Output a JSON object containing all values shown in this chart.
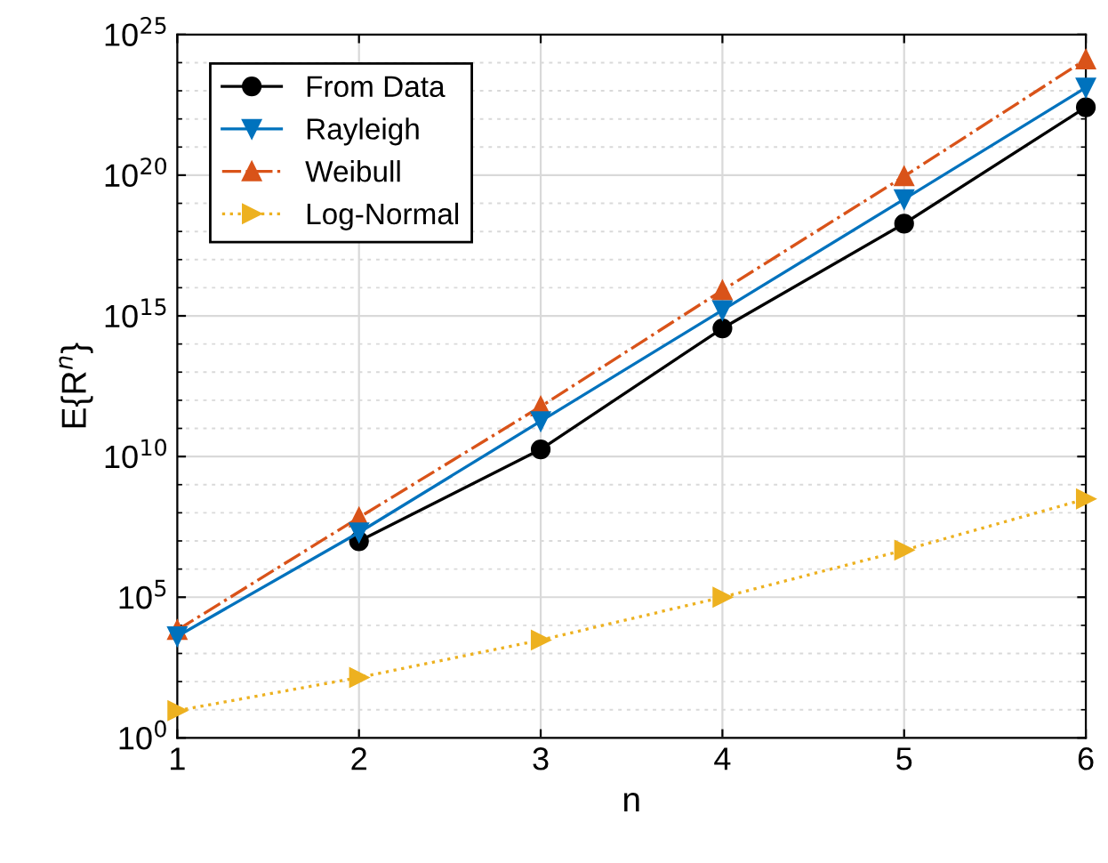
{
  "chart_data": {
    "type": "line",
    "xlabel": "n",
    "ylabel": "E{R$^{n}$}",
    "log": "y",
    "x": [
      1,
      2,
      3,
      4,
      5,
      6
    ],
    "xlim": [
      1,
      6
    ],
    "xticks": [
      1,
      2,
      3,
      4,
      5,
      6
    ],
    "ylim": [
      1,
      1e+25
    ],
    "yticks": [
      {
        "value": 1,
        "label": "10$^{0}$"
      },
      {
        "value": 100000.0,
        "label": "10$^{5}$"
      },
      {
        "value": 10000000000.0,
        "label": "10$^{10}$"
      },
      {
        "value": 1000000000000000.0,
        "label": "10$^{15}$"
      },
      {
        "value": 1e+20,
        "label": "10$^{20}$"
      },
      {
        "value": 1e+25,
        "label": "10$^{25}$"
      }
    ],
    "grid": true,
    "legend": "top left",
    "series": [
      {
        "name": "From Data",
        "color": "#000000",
        "marker": "circle",
        "line_style": "solid",
        "values": [
          null,
          9800000.0,
          18000000000.0,
          360000000000000.0,
          1.9e+18,
          2.6e+22
        ]
      },
      {
        "name": "Rayleigh",
        "color": "#0072bd",
        "marker": "triangle_down",
        "line_style": "solid",
        "values": [
          4100.0,
          20000000.0,
          180000000000.0,
          1600000000000000.0,
          1.4e+19,
          1.3e+23
        ]
      },
      {
        "name": "Weibull",
        "color": "#d95319",
        "marker": "triangle",
        "line_style": "dashdot",
        "values": [
          6800.0,
          68000000.0,
          600000000000.0,
          8100000000000000.0,
          9.1e+19,
          1.3e+24
        ]
      },
      {
        "name": "Log-Normal",
        "color": "#edb120",
        "marker": "triangle_right",
        "line_style": "dotted",
        "values": [
          9.3,
          140.0,
          3000.0,
          100000.0,
          4700000.0,
          310000000.0
        ]
      }
    ]
  }
}
